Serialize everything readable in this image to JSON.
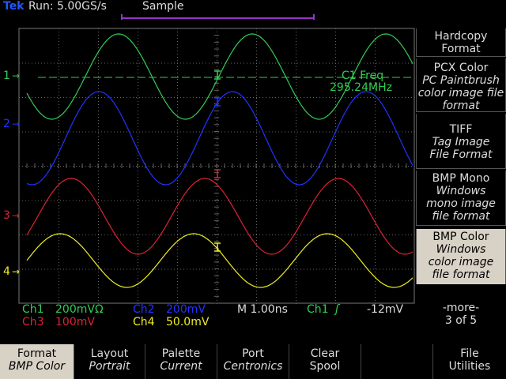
{
  "header": {
    "brand": "Tek",
    "run_status": "Run: 5.00GS/s",
    "acq_mode": "Sample"
  },
  "channel_markers": [
    "1",
    "2",
    "3",
    "4"
  ],
  "measurement": {
    "label": "C1 Freq",
    "value": "295.24MHz"
  },
  "readouts": {
    "ch1": "Ch1",
    "ch1_scale": "200mVΩ",
    "ch2": "Ch2",
    "ch2_scale": "200mV",
    "ch3": "Ch3",
    "ch3_scale": "100mV",
    "ch4": "Ch4",
    "ch4_scale": "50.0mV",
    "timebase": "M 1.00ns",
    "trig_source": "Ch1",
    "trig_slope": "ʃ",
    "trig_level": "-12mV"
  },
  "right_menu": {
    "items": [
      {
        "title": "Hardcopy",
        "desc": "Format"
      },
      {
        "title": "PCX Color",
        "desc": "PC Paintbrush color image file format"
      },
      {
        "title": "TIFF",
        "desc": "Tag Image File Format"
      },
      {
        "title": "BMP Mono",
        "desc": "Windows mono image file format"
      },
      {
        "title": "BMP Color",
        "desc": "Windows color image file format"
      },
      {
        "title": "-more-",
        "desc": "3 of 5"
      }
    ]
  },
  "bottom_menu": {
    "items": [
      {
        "title": "Format",
        "value": "BMP Color"
      },
      {
        "title": "Layout",
        "value": "Portrait"
      },
      {
        "title": "Palette",
        "value": "Current"
      },
      {
        "title": "Port",
        "value": "Centronics"
      },
      {
        "title": "Clear",
        "value": "Spool"
      },
      {
        "title": "",
        "value": ""
      },
      {
        "title": "File",
        "value": "Utilities"
      }
    ]
  },
  "colors": {
    "ch1": "#33cc55",
    "ch2": "#2233ff",
    "ch3": "#dd2233",
    "ch4": "#eeee22",
    "grid": "#666666"
  }
}
